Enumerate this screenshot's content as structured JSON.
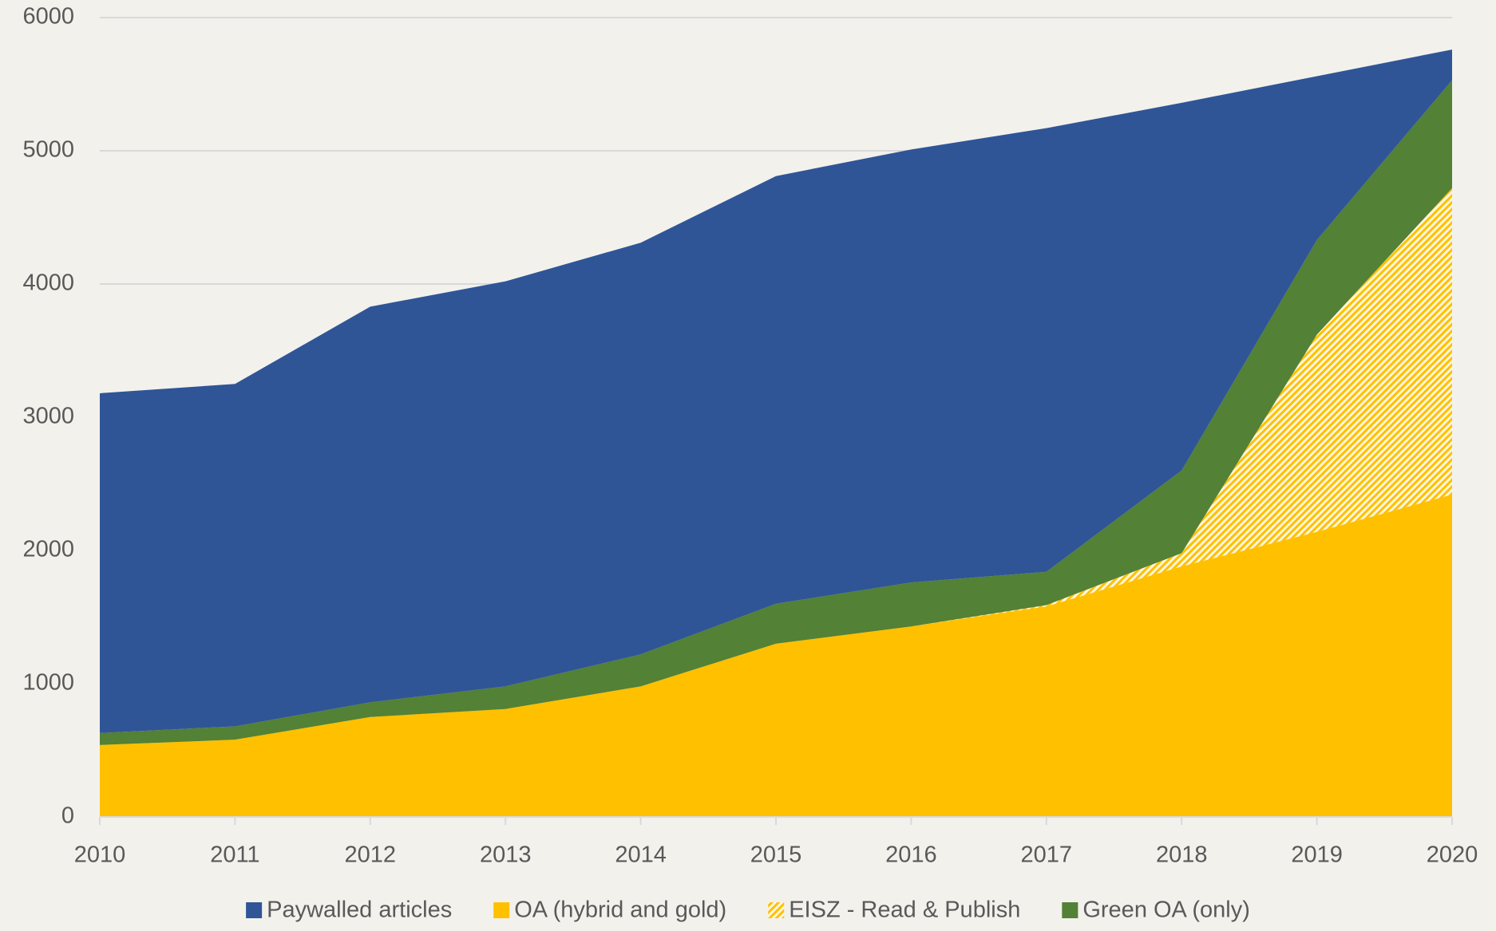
{
  "chart_data": {
    "type": "area",
    "stacked": true,
    "categories": [
      "2010",
      "2011",
      "2012",
      "2013",
      "2014",
      "2015",
      "2016",
      "2017",
      "2018",
      "2019",
      "2020"
    ],
    "series": [
      {
        "name": "OA (hybrid and gold)",
        "color": "#ffc000",
        "values": [
          540,
          580,
          750,
          810,
          980,
          1300,
          1430,
          1580,
          1880,
          2140,
          2420
        ]
      },
      {
        "name": "EISZ - Read & Publish",
        "color": "#ffc000",
        "pattern": "hatch",
        "values": [
          0,
          0,
          0,
          0,
          0,
          0,
          0,
          10,
          100,
          1480,
          2300
        ]
      },
      {
        "name": "Green OA (only)",
        "color": "#538135",
        "values": [
          90,
          100,
          110,
          170,
          240,
          300,
          330,
          250,
          620,
          710,
          810
        ]
      },
      {
        "name": "Paywalled articles",
        "color": "#2f5597",
        "values": [
          2550,
          2570,
          2970,
          3040,
          3090,
          3210,
          3250,
          3330,
          2760,
          1230,
          230
        ]
      }
    ],
    "legend_order": [
      3,
      0,
      1,
      2
    ],
    "ylim": [
      0,
      6000
    ],
    "yticks": [
      0,
      1000,
      2000,
      3000,
      4000,
      5000,
      6000
    ],
    "grid": true
  }
}
